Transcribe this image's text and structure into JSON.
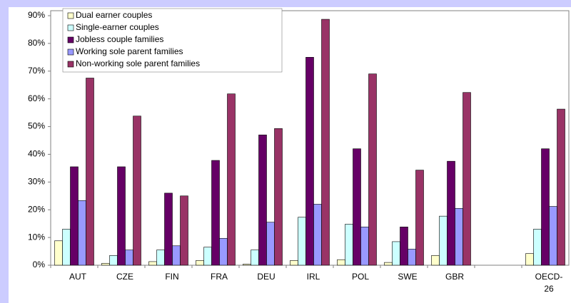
{
  "chart_data": {
    "type": "bar",
    "categories": [
      "AUT",
      "CZE",
      "FIN",
      "FRA",
      "DEU",
      "IRL",
      "POL",
      "SWE",
      "GBR",
      null,
      "OECD-26"
    ],
    "series": [
      {
        "name": "Dual earner couples",
        "color": "#ffffcc",
        "values": [
          8.8,
          0.7,
          1.3,
          1.7,
          0.4,
          1.7,
          2,
          1,
          3.5,
          null,
          4.2
        ]
      },
      {
        "name": "Single-earner couples",
        "color": "#ccffff",
        "values": [
          13,
          3.5,
          5.5,
          6.5,
          5.5,
          17.3,
          14.8,
          8.5,
          17.7,
          null,
          13
        ]
      },
      {
        "name": "Jobless couple families",
        "color": "#660066",
        "values": [
          35.5,
          35.5,
          26,
          37.8,
          47,
          75,
          42,
          13.8,
          37.5,
          null,
          42
        ]
      },
      {
        "name": "Working sole parent families",
        "color": "#9999ff",
        "values": [
          23.3,
          5.5,
          7,
          9.7,
          15.5,
          22,
          13.8,
          5.8,
          20.5,
          null,
          21.2
        ]
      },
      {
        "name": "Non-working sole parent families",
        "color": "#993366",
        "values": [
          67.5,
          53.8,
          25,
          61.8,
          49.3,
          88.7,
          69,
          34.3,
          62.3,
          null,
          56.3
        ]
      }
    ],
    "ylim": [
      0,
      90
    ],
    "yticks": [
      {
        "value": 0,
        "label": "0%"
      },
      {
        "value": 10,
        "label": "10%"
      },
      {
        "value": 20,
        "label": "20%"
      },
      {
        "value": 30,
        "label": "30%"
      },
      {
        "value": 40,
        "label": "40%"
      },
      {
        "value": 50,
        "label": "50%"
      },
      {
        "value": 60,
        "label": "60%"
      },
      {
        "value": 70,
        "label": "70%"
      },
      {
        "value": 80,
        "label": "80%"
      },
      {
        "value": 90,
        "label": "90%"
      }
    ],
    "grid": false,
    "legend": "upper left"
  }
}
